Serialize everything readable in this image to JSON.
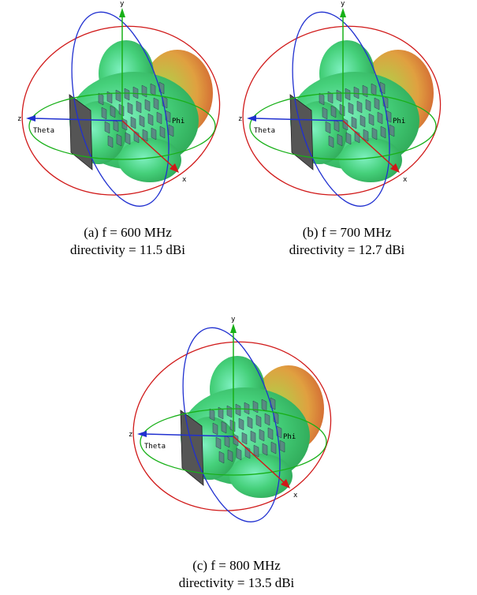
{
  "figures": [
    {
      "axes": {
        "x": "x",
        "y": "y",
        "z": "z",
        "theta": "Theta",
        "phi": "Phi"
      },
      "caption": [
        "(a)  f = 600 MHz",
        "directivity = 11.5 dBi"
      ]
    },
    {
      "axes": {
        "x": "x",
        "y": "y",
        "z": "z",
        "theta": "Theta",
        "phi": "Phi"
      },
      "caption": [
        "(b) f = 700 MHz",
        "directivity = 12.7 dBi"
      ]
    },
    {
      "axes": {
        "x": "x",
        "y": "y",
        "z": "z",
        "theta": "Theta",
        "phi": "Phi"
      },
      "caption": [
        "(c) f = 800 MHz",
        "directivity = 13.5 dBi"
      ]
    }
  ]
}
